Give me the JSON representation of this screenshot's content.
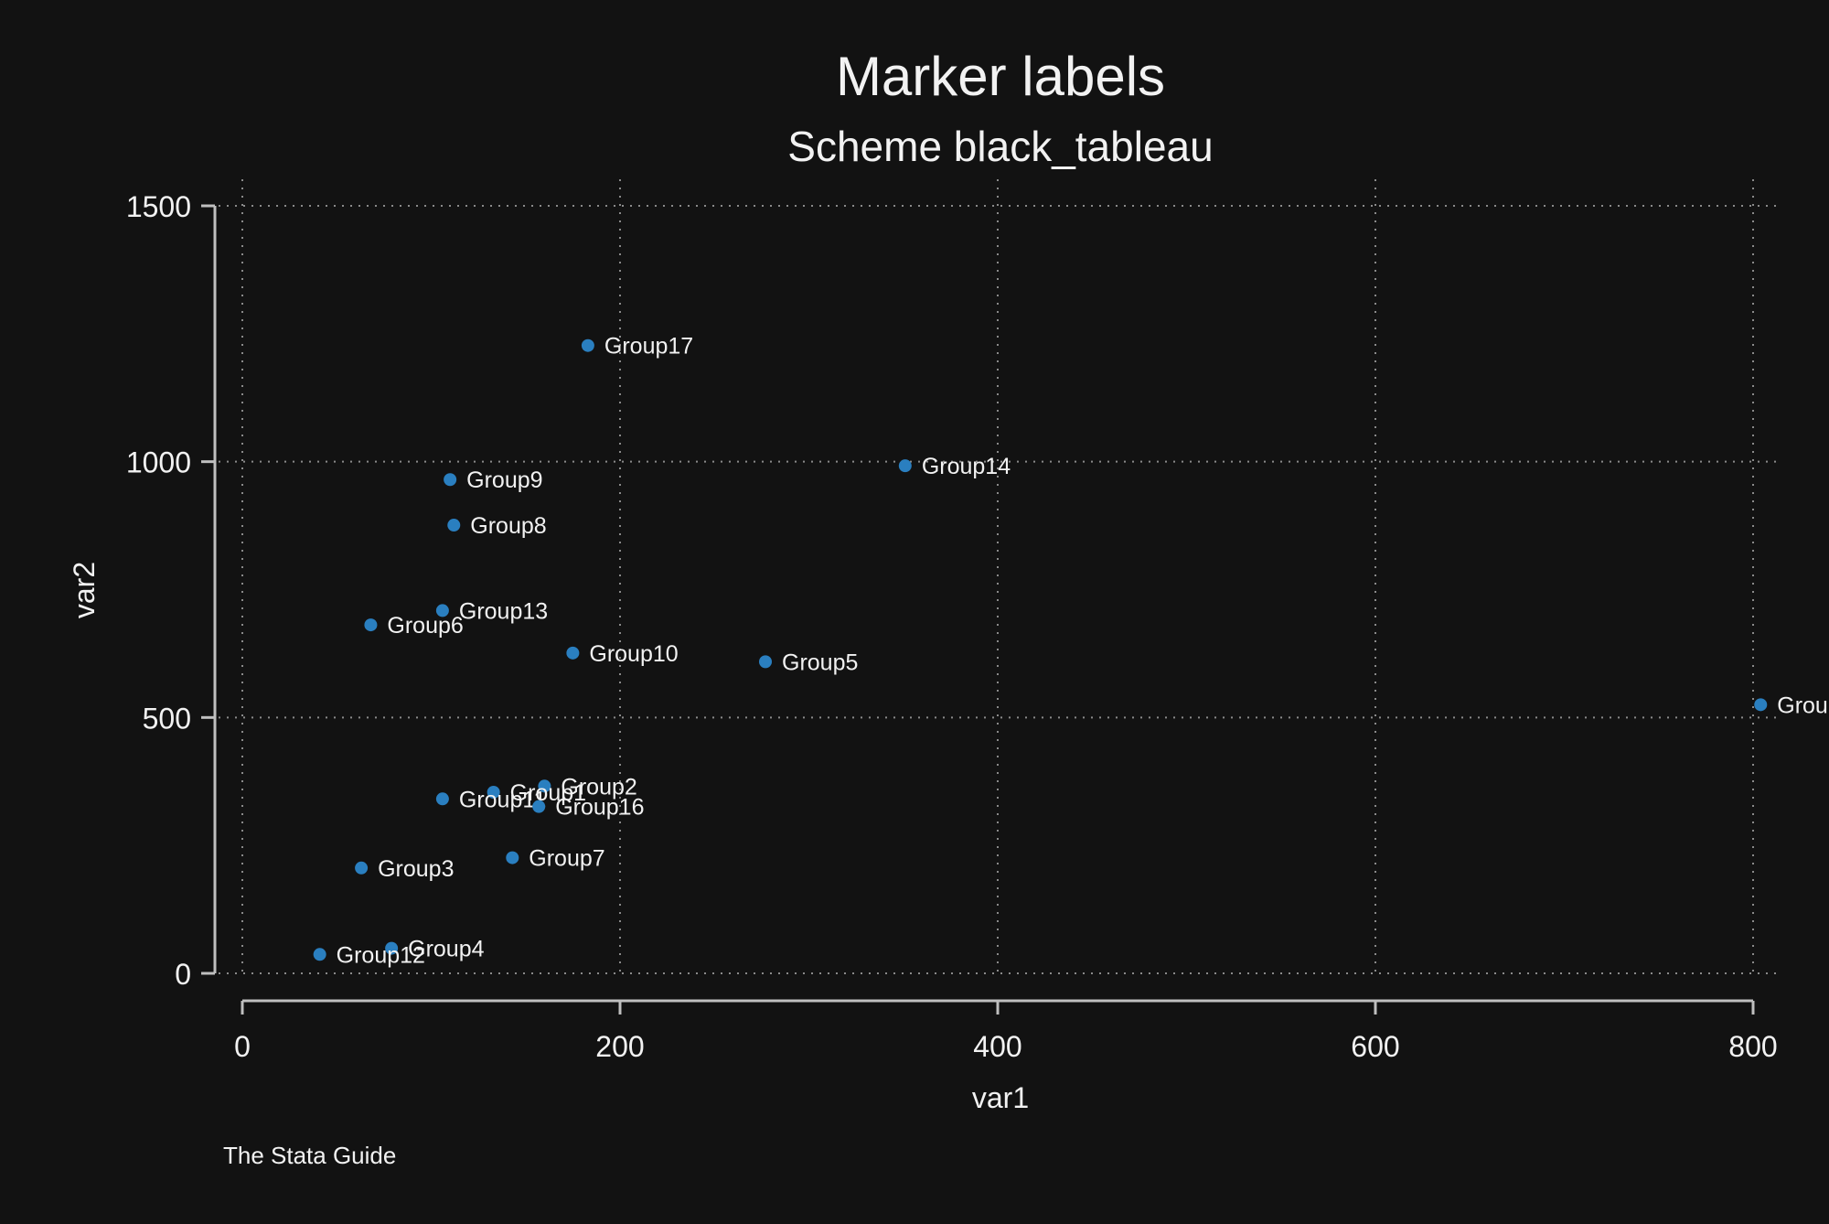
{
  "chart_data": {
    "type": "scatter",
    "title": "Marker labels",
    "subtitle": "Scheme black_tableau",
    "xlabel": "var1",
    "ylabel": "var2",
    "note": "The Stata Guide",
    "xlim": [
      0,
      800
    ],
    "ylim": [
      0,
      1500
    ],
    "xticks": [
      0,
      200,
      400,
      600,
      800
    ],
    "yticks": [
      0,
      500,
      1000,
      1500
    ],
    "xtick_labels": [
      "0",
      "200",
      "400",
      "600",
      "800"
    ],
    "ytick_labels": [
      "0",
      "500",
      "1000",
      "1500"
    ],
    "grid": true,
    "marker_color": "#2a7fc0",
    "background_color": "#121212",
    "text_color": "#f2f2f2",
    "points": [
      {
        "label": "Group17",
        "x": 183,
        "y": 1227
      },
      {
        "label": "Group14",
        "x": 351,
        "y": 992
      },
      {
        "label": "Group9",
        "x": 110,
        "y": 965
      },
      {
        "label": "Group8",
        "x": 112,
        "y": 876
      },
      {
        "label": "Group13",
        "x": 106,
        "y": 709
      },
      {
        "label": "Group6",
        "x": 68,
        "y": 681
      },
      {
        "label": "Group10",
        "x": 175,
        "y": 626
      },
      {
        "label": "Group5",
        "x": 277,
        "y": 609
      },
      {
        "label": "Group",
        "x": 804,
        "y": 525
      },
      {
        "label": "Group2",
        "x": 160,
        "y": 366
      },
      {
        "label": "Group1",
        "x": 133,
        "y": 354
      },
      {
        "label": "Group11",
        "x": 106,
        "y": 341
      },
      {
        "label": "Group16",
        "x": 157,
        "y": 326
      },
      {
        "label": "Group7",
        "x": 143,
        "y": 226
      },
      {
        "label": "Group3",
        "x": 63,
        "y": 206
      },
      {
        "label": "Group4",
        "x": 79,
        "y": 49
      },
      {
        "label": "Group12",
        "x": 41,
        "y": 37
      }
    ]
  }
}
